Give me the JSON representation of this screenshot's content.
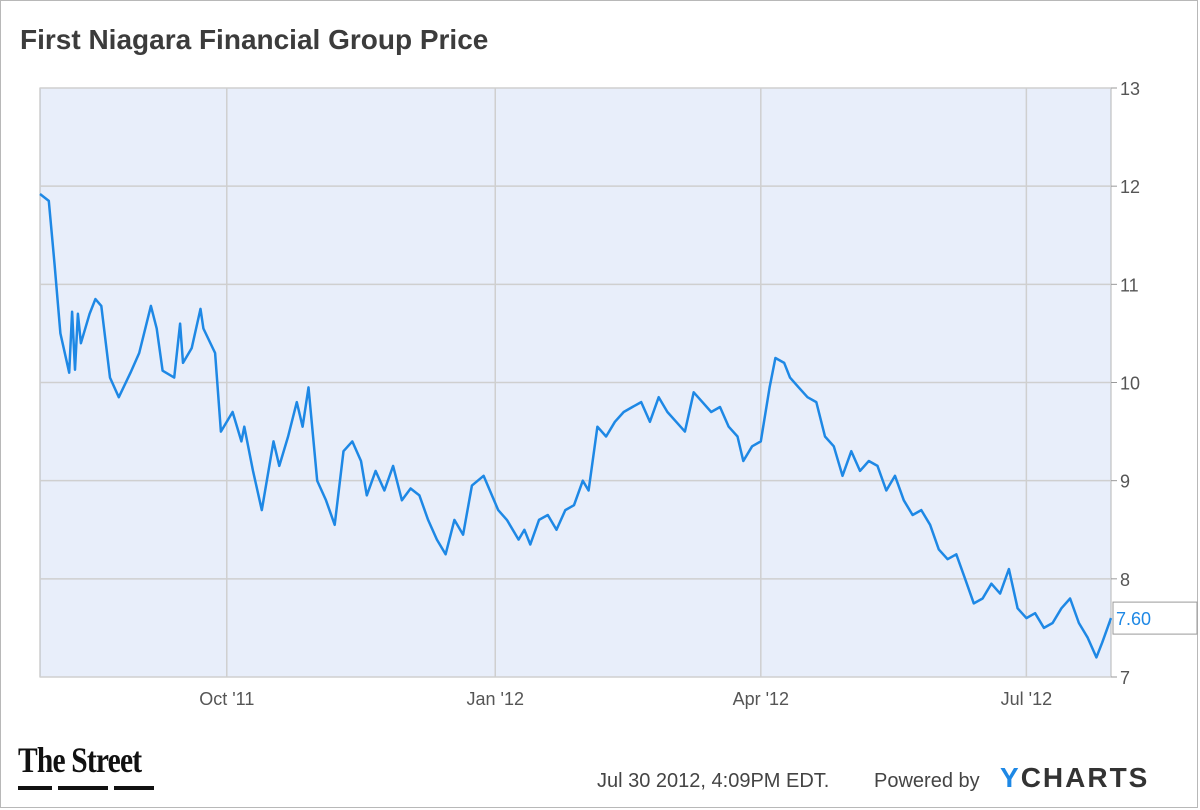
{
  "chart_data": {
    "type": "line",
    "title": "First Niagara Financial Group Price",
    "ylim": [
      7,
      13
    ],
    "yticks": [
      7,
      8,
      9,
      10,
      11,
      12,
      13
    ],
    "xlim": [
      "2011-07-29",
      "2012-07-30"
    ],
    "xticks": [
      {
        "label": "Oct '11",
        "date": "2011-10-01"
      },
      {
        "label": "Jan '12",
        "date": "2012-01-01"
      },
      {
        "label": "Apr '12",
        "date": "2012-04-01"
      },
      {
        "label": "Jul '12",
        "date": "2012-07-01"
      }
    ],
    "grid": true,
    "series": [
      {
        "color": "#1e88e5",
        "last_value_label": "7.60",
        "points": [
          [
            "2011-07-29",
            11.92
          ],
          [
            "2011-08-01",
            11.85
          ],
          [
            "2011-08-03",
            11.2
          ],
          [
            "2011-08-05",
            10.5
          ],
          [
            "2011-08-08",
            10.1
          ],
          [
            "2011-08-09",
            10.72
          ],
          [
            "2011-08-10",
            10.13
          ],
          [
            "2011-08-11",
            10.7
          ],
          [
            "2011-08-12",
            10.4
          ],
          [
            "2011-08-15",
            10.7
          ],
          [
            "2011-08-17",
            10.85
          ],
          [
            "2011-08-19",
            10.78
          ],
          [
            "2011-08-22",
            10.05
          ],
          [
            "2011-08-25",
            9.85
          ],
          [
            "2011-08-29",
            10.1
          ],
          [
            "2011-09-01",
            10.3
          ],
          [
            "2011-09-05",
            10.78
          ],
          [
            "2011-09-07",
            10.55
          ],
          [
            "2011-09-09",
            10.12
          ],
          [
            "2011-09-13",
            10.05
          ],
          [
            "2011-09-15",
            10.6
          ],
          [
            "2011-09-16",
            10.2
          ],
          [
            "2011-09-19",
            10.35
          ],
          [
            "2011-09-22",
            10.75
          ],
          [
            "2011-09-23",
            10.55
          ],
          [
            "2011-09-27",
            10.3
          ],
          [
            "2011-09-29",
            9.5
          ],
          [
            "2011-10-03",
            9.7
          ],
          [
            "2011-10-06",
            9.4
          ],
          [
            "2011-10-07",
            9.55
          ],
          [
            "2011-10-10",
            9.1
          ],
          [
            "2011-10-13",
            8.7
          ],
          [
            "2011-10-17",
            9.4
          ],
          [
            "2011-10-19",
            9.15
          ],
          [
            "2011-10-22",
            9.45
          ],
          [
            "2011-10-25",
            9.8
          ],
          [
            "2011-10-27",
            9.55
          ],
          [
            "2011-10-29",
            9.95
          ],
          [
            "2011-11-01",
            9.0
          ],
          [
            "2011-11-04",
            8.8
          ],
          [
            "2011-11-07",
            8.55
          ],
          [
            "2011-11-10",
            9.3
          ],
          [
            "2011-11-13",
            9.4
          ],
          [
            "2011-11-16",
            9.2
          ],
          [
            "2011-11-18",
            8.85
          ],
          [
            "2011-11-21",
            9.1
          ],
          [
            "2011-11-24",
            8.9
          ],
          [
            "2011-11-27",
            9.15
          ],
          [
            "2011-11-30",
            8.8
          ],
          [
            "2011-12-03",
            8.92
          ],
          [
            "2011-12-06",
            8.85
          ],
          [
            "2011-12-09",
            8.6
          ],
          [
            "2011-12-12",
            8.4
          ],
          [
            "2011-12-15",
            8.25
          ],
          [
            "2011-12-18",
            8.6
          ],
          [
            "2011-12-21",
            8.45
          ],
          [
            "2011-12-24",
            8.95
          ],
          [
            "2011-12-28",
            9.05
          ],
          [
            "2012-01-02",
            8.7
          ],
          [
            "2012-01-05",
            8.6
          ],
          [
            "2012-01-09",
            8.4
          ],
          [
            "2012-01-11",
            8.5
          ],
          [
            "2012-01-13",
            8.35
          ],
          [
            "2012-01-16",
            8.6
          ],
          [
            "2012-01-19",
            8.65
          ],
          [
            "2012-01-22",
            8.5
          ],
          [
            "2012-01-25",
            8.7
          ],
          [
            "2012-01-28",
            8.75
          ],
          [
            "2012-01-31",
            9.0
          ],
          [
            "2012-02-02",
            8.9
          ],
          [
            "2012-02-05",
            9.55
          ],
          [
            "2012-02-08",
            9.45
          ],
          [
            "2012-02-11",
            9.6
          ],
          [
            "2012-02-14",
            9.7
          ],
          [
            "2012-02-17",
            9.75
          ],
          [
            "2012-02-20",
            9.8
          ],
          [
            "2012-02-23",
            9.6
          ],
          [
            "2012-02-26",
            9.85
          ],
          [
            "2012-02-29",
            9.7
          ],
          [
            "2012-03-03",
            9.6
          ],
          [
            "2012-03-06",
            9.5
          ],
          [
            "2012-03-09",
            9.9
          ],
          [
            "2012-03-12",
            9.8
          ],
          [
            "2012-03-15",
            9.7
          ],
          [
            "2012-03-18",
            9.75
          ],
          [
            "2012-03-21",
            9.55
          ],
          [
            "2012-03-24",
            9.45
          ],
          [
            "2012-03-26",
            9.2
          ],
          [
            "2012-03-29",
            9.35
          ],
          [
            "2012-04-01",
            9.4
          ],
          [
            "2012-04-04",
            9.95
          ],
          [
            "2012-04-06",
            10.25
          ],
          [
            "2012-04-09",
            10.2
          ],
          [
            "2012-04-11",
            10.05
          ],
          [
            "2012-04-14",
            9.95
          ],
          [
            "2012-04-17",
            9.85
          ],
          [
            "2012-04-20",
            9.8
          ],
          [
            "2012-04-23",
            9.45
          ],
          [
            "2012-04-26",
            9.35
          ],
          [
            "2012-04-29",
            9.05
          ],
          [
            "2012-05-02",
            9.3
          ],
          [
            "2012-05-05",
            9.1
          ],
          [
            "2012-05-08",
            9.2
          ],
          [
            "2012-05-11",
            9.15
          ],
          [
            "2012-05-14",
            8.9
          ],
          [
            "2012-05-17",
            9.05
          ],
          [
            "2012-05-20",
            8.8
          ],
          [
            "2012-05-23",
            8.65
          ],
          [
            "2012-05-26",
            8.7
          ],
          [
            "2012-05-29",
            8.55
          ],
          [
            "2012-06-01",
            8.3
          ],
          [
            "2012-06-04",
            8.2
          ],
          [
            "2012-06-07",
            8.25
          ],
          [
            "2012-06-10",
            8.0
          ],
          [
            "2012-06-13",
            7.75
          ],
          [
            "2012-06-16",
            7.8
          ],
          [
            "2012-06-19",
            7.95
          ],
          [
            "2012-06-22",
            7.85
          ],
          [
            "2012-06-25",
            8.1
          ],
          [
            "2012-06-28",
            7.7
          ],
          [
            "2012-07-01",
            7.6
          ],
          [
            "2012-07-04",
            7.65
          ],
          [
            "2012-07-07",
            7.5
          ],
          [
            "2012-07-10",
            7.55
          ],
          [
            "2012-07-13",
            7.7
          ],
          [
            "2012-07-16",
            7.8
          ],
          [
            "2012-07-19",
            7.55
          ],
          [
            "2012-07-22",
            7.4
          ],
          [
            "2012-07-25",
            7.2
          ],
          [
            "2012-07-27",
            7.35
          ],
          [
            "2012-07-30",
            7.6
          ]
        ]
      }
    ]
  },
  "footer": {
    "timestamp": "Jul 30 2012, 4:09PM EDT.",
    "powered_by": "Powered by",
    "ycharts_y": "Y",
    "ycharts_rest": "CHARTS",
    "thestreet_logo": "The Street"
  }
}
